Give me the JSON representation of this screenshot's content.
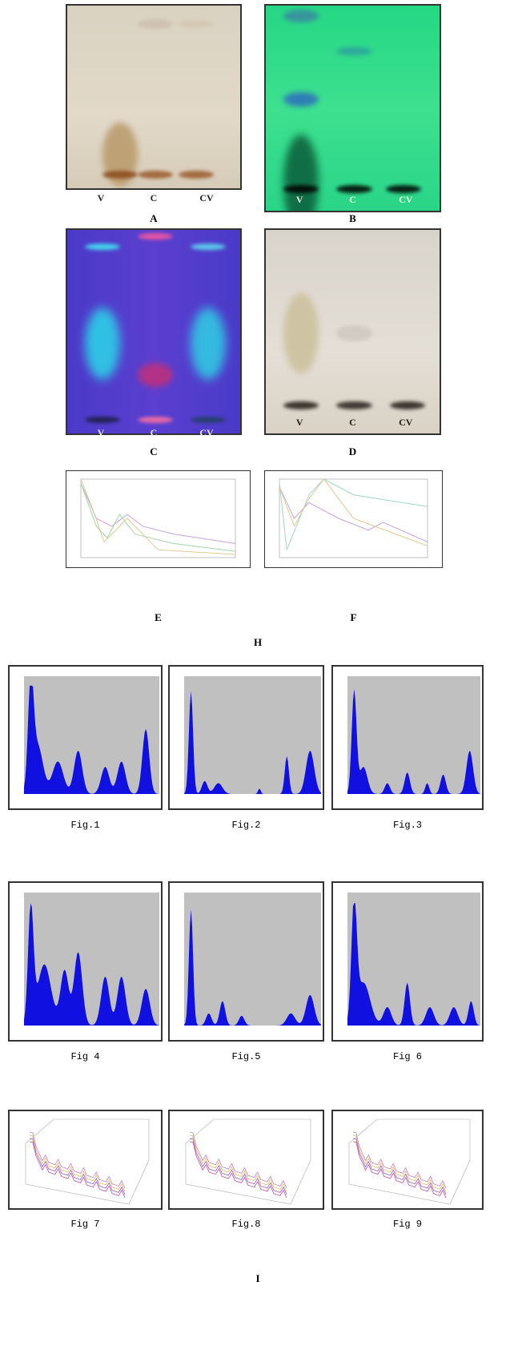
{
  "plates": [
    {
      "lanes": [
        "V",
        "C",
        "CV"
      ],
      "caption": "A"
    },
    {
      "lanes": [
        "V",
        "C",
        "CV"
      ],
      "caption": "B"
    },
    {
      "lanes": [
        "V",
        "C",
        "CV"
      ],
      "caption": "C"
    },
    {
      "lanes": [
        "V",
        "C",
        "CV"
      ],
      "caption": "D"
    }
  ],
  "spectra": [
    {
      "caption": "E"
    },
    {
      "caption": "F"
    }
  ],
  "section_h": "H",
  "figures": [
    {
      "caption": "Fig.1"
    },
    {
      "caption": "Fig.2"
    },
    {
      "caption": "Fig.3"
    },
    {
      "caption": "Fig 4"
    },
    {
      "caption": "Fig.5"
    },
    {
      "caption": "Fig 6"
    },
    {
      "caption": "Fig 7"
    },
    {
      "caption": "Fig.8"
    },
    {
      "caption": "Fig 9"
    }
  ],
  "section_i": "I"
}
